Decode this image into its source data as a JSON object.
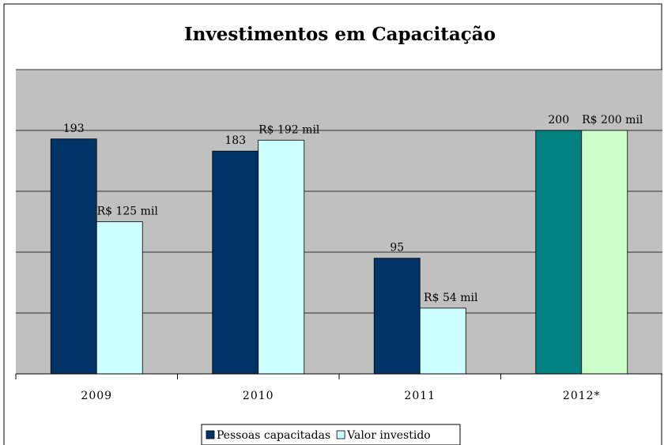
{
  "chart_data": {
    "type": "bar",
    "title": "Investimentos em Capacitação",
    "categories": [
      "2009",
      "2010",
      "2011",
      "2012*"
    ],
    "series": [
      {
        "name": "Pessoas capacitadas",
        "colors": [
          "#003366",
          "#003366",
          "#003366",
          "#008080"
        ],
        "values": [
          193,
          183,
          95,
          200
        ]
      },
      {
        "name": "Valor investido",
        "colors": [
          "#ccffff",
          "#ccffff",
          "#ccffff",
          "#ccffcc"
        ],
        "values": [
          125,
          192,
          54,
          200
        ],
        "value_labels": [
          "R$ 125 mil",
          "R$ 192 mil",
          "R$ 54 mil",
          "R$ 200 mil"
        ]
      }
    ],
    "ylim": [
      0,
      250
    ],
    "yticks": [
      0,
      50,
      100,
      150,
      200,
      250
    ],
    "grid": true,
    "legend": "bottom"
  }
}
